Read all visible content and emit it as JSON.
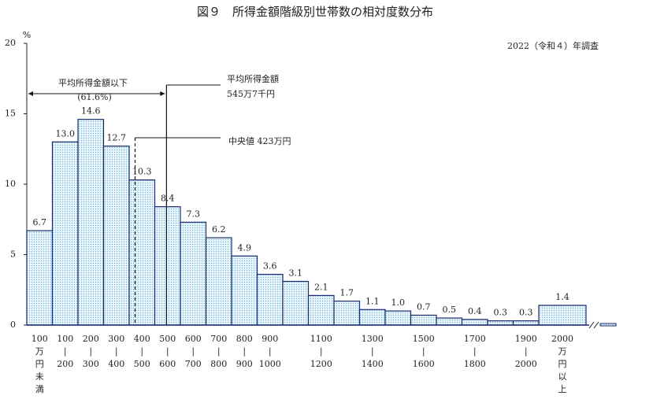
{
  "chart_data": {
    "type": "bar",
    "title": "図９　所得金額階級別世帯数の相対度数分布",
    "subtitle": "2022（令和４）年調査",
    "y_unit": "%",
    "categories": [
      [
        "100",
        "万",
        "円",
        "未",
        "満"
      ],
      [
        "100",
        "|",
        "200"
      ],
      [
        "200",
        "|",
        "300"
      ],
      [
        "300",
        "|",
        "400"
      ],
      [
        "400",
        "|",
        "500"
      ],
      [
        "500",
        "|",
        "600"
      ],
      [
        "600",
        "|",
        "700"
      ],
      [
        "700",
        "|",
        "800"
      ],
      [
        "800",
        "|",
        "900"
      ],
      [
        "900",
        "|",
        "1000"
      ],
      null,
      [
        "1100",
        "|",
        "1200"
      ],
      null,
      [
        "1300",
        "|",
        "1400"
      ],
      null,
      [
        "1500",
        "|",
        "1600"
      ],
      null,
      [
        "1700",
        "|",
        "1800"
      ],
      null,
      [
        "1900",
        "|",
        "2000"
      ],
      [
        "2000",
        "万",
        "円",
        "以",
        "上"
      ]
    ],
    "values": [
      6.7,
      13.0,
      14.6,
      12.7,
      10.3,
      8.4,
      7.3,
      6.2,
      4.9,
      3.6,
      3.1,
      2.1,
      1.7,
      1.1,
      1.0,
      0.7,
      0.5,
      0.4,
      0.3,
      0.3,
      1.4
    ],
    "value_labels": [
      "6.7",
      "13.0",
      "14.6",
      "12.7",
      "10.3",
      "8.4",
      "7.3",
      "6.2",
      "4.9",
      "3.6",
      "3.1",
      "2.1",
      "1.7",
      "1.1",
      "1.0",
      "0.7",
      "0.5",
      "0.4",
      "0.3",
      "0.3",
      "1.4"
    ],
    "color": "#1c2b6e",
    "ylim": [
      0,
      20
    ],
    "yticks": [
      0,
      5,
      10,
      15,
      20
    ],
    "annotations": {
      "below_mean": {
        "label": "平均所得金額以下",
        "share": "(61.6%)"
      },
      "mean": {
        "label": "平均所得金額",
        "amount": "545万7千円",
        "value": 545.7
      },
      "median": {
        "label": "中央値 423万円",
        "value": 423
      }
    }
  }
}
